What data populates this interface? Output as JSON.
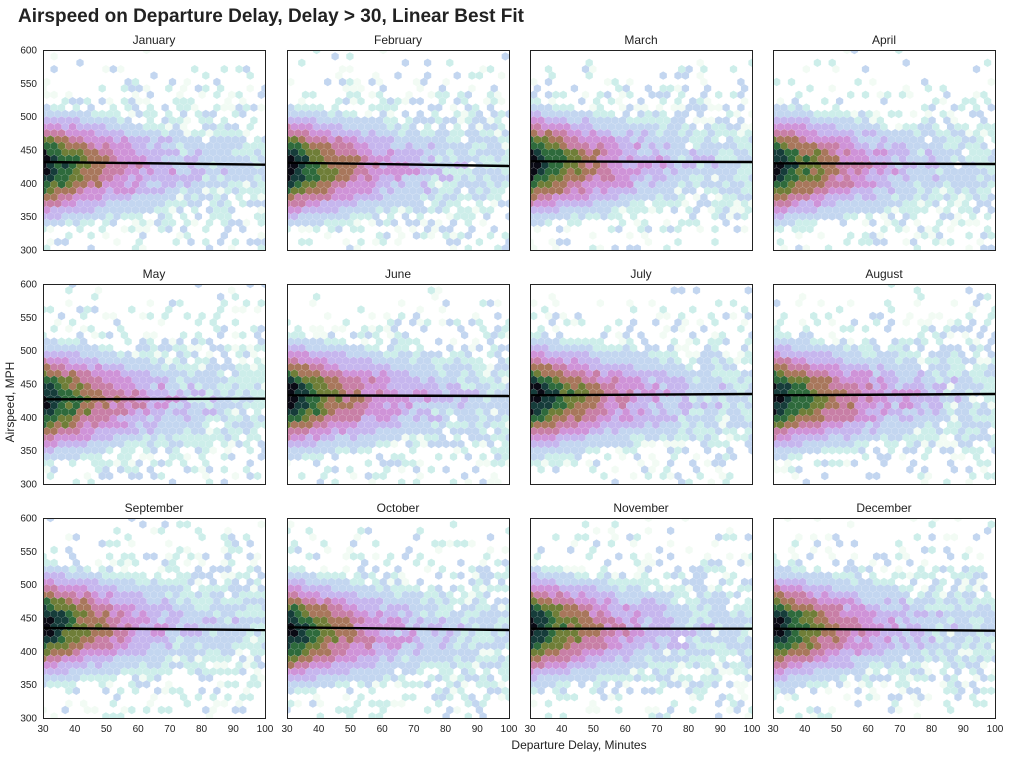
{
  "chart_data": {
    "type": "hexbin",
    "title": "Airspeed on Departure Delay, Delay > 30, Linear Best Fit",
    "xlabel": "Departure Delay, Minutes",
    "ylabel": "Airspeed, MPH",
    "xlim": [
      30,
      100
    ],
    "ylim": [
      300,
      600
    ],
    "xticks": [
      "30",
      "40",
      "50",
      "60",
      "70",
      "80",
      "90",
      "100"
    ],
    "yticks": [
      "300",
      "350",
      "400",
      "450",
      "500",
      "550",
      "600"
    ],
    "fit_line_color": "#000000",
    "colormap": [
      "#f2fbf4",
      "#cdeeea",
      "#c3d6f0",
      "#c6b6ee",
      "#cf93d8",
      "#c87fa6",
      "#a8775c",
      "#6f7e38",
      "#2e6a3c",
      "#163c3a",
      "#0a0a14"
    ],
    "panels": [
      {
        "month": "January",
        "fit": [
          432,
          428
        ],
        "center": 425,
        "density_decay": 22
      },
      {
        "month": "February",
        "fit": [
          431,
          426
        ],
        "center": 425,
        "density_decay": 22
      },
      {
        "month": "March",
        "fit": [
          433,
          432
        ],
        "center": 430,
        "density_decay": 22
      },
      {
        "month": "April",
        "fit": [
          430,
          429
        ],
        "center": 425,
        "density_decay": 22
      },
      {
        "month": "May",
        "fit": [
          427,
          428
        ],
        "center": 425,
        "density_decay": 22
      },
      {
        "month": "June",
        "fit": [
          433,
          432
        ],
        "center": 430,
        "density_decay": 24
      },
      {
        "month": "July",
        "fit": [
          433,
          435
        ],
        "center": 430,
        "density_decay": 24
      },
      {
        "month": "August",
        "fit": [
          433,
          435
        ],
        "center": 430,
        "density_decay": 24
      },
      {
        "month": "September",
        "fit": [
          435,
          432
        ],
        "center": 440,
        "density_decay": 22
      },
      {
        "month": "October",
        "fit": [
          436,
          432
        ],
        "center": 430,
        "density_decay": 22
      },
      {
        "month": "November",
        "fit": [
          434,
          434
        ],
        "center": 435,
        "density_decay": 22
      },
      {
        "month": "December",
        "fit": [
          434,
          431
        ],
        "center": 435,
        "density_decay": 22
      }
    ]
  }
}
